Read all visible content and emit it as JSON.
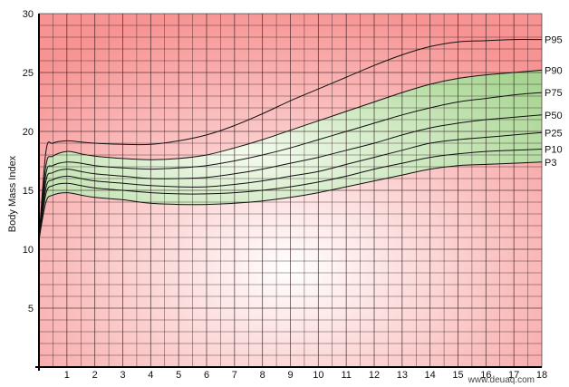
{
  "chart_data": {
    "type": "line",
    "title": "",
    "xlabel": "",
    "ylabel": "Body Mass Index",
    "xlim": [
      0,
      18
    ],
    "ylim": [
      0,
      30
    ],
    "grid": true,
    "x_ticks": [
      1,
      2,
      3,
      4,
      5,
      6,
      7,
      8,
      9,
      10,
      11,
      12,
      13,
      14,
      15,
      16,
      17,
      18
    ],
    "y_ticks": [
      5,
      10,
      15,
      20,
      25,
      30
    ],
    "x": [
      0,
      0.25,
      0.5,
      1,
      1.5,
      2,
      3,
      4,
      5,
      6,
      7,
      8,
      9,
      10,
      11,
      12,
      13,
      14,
      15,
      16,
      17,
      18
    ],
    "series": [
      {
        "name": "P95",
        "values": [
          10.8,
          18.3,
          19.0,
          19.2,
          19.1,
          19.0,
          18.9,
          18.9,
          19.2,
          19.7,
          20.5,
          21.5,
          22.6,
          23.6,
          24.6,
          25.6,
          26.5,
          27.2,
          27.6,
          27.7,
          27.8,
          27.8
        ]
      },
      {
        "name": "P90",
        "values": [
          10.8,
          17.1,
          17.9,
          18.3,
          18.1,
          17.9,
          17.7,
          17.6,
          17.7,
          18.0,
          18.6,
          19.3,
          20.1,
          20.9,
          21.7,
          22.5,
          23.3,
          24.0,
          24.5,
          24.8,
          25.0,
          25.2
        ]
      },
      {
        "name": "P75",
        "values": [
          10.8,
          16.4,
          17.1,
          17.4,
          17.3,
          17.1,
          16.9,
          16.8,
          16.9,
          17.1,
          17.5,
          18.0,
          18.6,
          19.3,
          20.0,
          20.7,
          21.4,
          22.0,
          22.5,
          22.8,
          23.1,
          23.3
        ]
      },
      {
        "name": "P50",
        "values": [
          10.8,
          15.8,
          16.5,
          16.8,
          16.6,
          16.4,
          16.2,
          16.0,
          16.0,
          16.1,
          16.4,
          16.8,
          17.3,
          17.8,
          18.4,
          19.0,
          19.7,
          20.3,
          20.7,
          21.0,
          21.2,
          21.4
        ]
      },
      {
        "name": "P25",
        "values": [
          10.8,
          15.2,
          15.9,
          16.2,
          16.0,
          15.8,
          15.6,
          15.4,
          15.3,
          15.3,
          15.5,
          15.8,
          16.2,
          16.6,
          17.2,
          17.8,
          18.4,
          19.0,
          19.3,
          19.5,
          19.7,
          19.9
        ]
      },
      {
        "name": "P10",
        "values": [
          10.8,
          14.7,
          15.4,
          15.6,
          15.4,
          15.2,
          15.0,
          14.8,
          14.7,
          14.7,
          14.8,
          15.0,
          15.3,
          15.7,
          16.2,
          16.8,
          17.3,
          17.8,
          18.1,
          18.3,
          18.4,
          18.5
        ]
      },
      {
        "name": "P3",
        "values": [
          10.8,
          14.0,
          14.6,
          14.8,
          14.6,
          14.4,
          14.2,
          13.9,
          13.8,
          13.8,
          13.9,
          14.1,
          14.4,
          14.8,
          15.3,
          15.8,
          16.3,
          16.8,
          17.1,
          17.2,
          17.3,
          17.4
        ]
      }
    ],
    "healthy_band": {
      "lower_series": "P3",
      "upper_series": "P90",
      "color": "#b2dca0"
    },
    "colors": {
      "outside_edge": "#f79393",
      "outside_center": "#ffffff",
      "band_edge": "#a7d591",
      "band_center": "#f4fbef",
      "grid_line": "#2a1515",
      "curve_line": "#111111"
    }
  },
  "watermark": "www.deuaq.com"
}
